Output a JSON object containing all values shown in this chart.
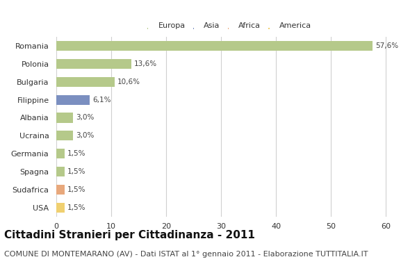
{
  "countries": [
    "Romania",
    "Polonia",
    "Bulgaria",
    "Filippine",
    "Albania",
    "Ucraina",
    "Germania",
    "Spagna",
    "Sudafrica",
    "USA"
  ],
  "values": [
    57.6,
    13.6,
    10.6,
    6.1,
    3.0,
    3.0,
    1.5,
    1.5,
    1.5,
    1.5
  ],
  "labels": [
    "57,6%",
    "13,6%",
    "10,6%",
    "6,1%",
    "3,0%",
    "3,0%",
    "1,5%",
    "1,5%",
    "1,5%",
    "1,5%"
  ],
  "bar_colors": [
    "#b5c98a",
    "#b5c98a",
    "#b5c98a",
    "#7b8fc0",
    "#b5c98a",
    "#b5c98a",
    "#b5c98a",
    "#b5c98a",
    "#e8a87c",
    "#f0d070"
  ],
  "legend_labels": [
    "Europa",
    "Asia",
    "Africa",
    "America"
  ],
  "legend_colors": [
    "#b5c98a",
    "#7b8fc0",
    "#e8a87c",
    "#f0d070"
  ],
  "title": "Cittadini Stranieri per Cittadinanza - 2011",
  "subtitle": "COMUNE DI MONTEMARANO (AV) - Dati ISTAT al 1° gennaio 2011 - Elaborazione TUTTITALIA.IT",
  "xlim": [
    0,
    63
  ],
  "xticks": [
    0,
    10,
    20,
    30,
    40,
    50,
    60
  ],
  "background_color": "#ffffff",
  "grid_color": "#d0d0d0",
  "title_fontsize": 11,
  "subtitle_fontsize": 8,
  "label_fontsize": 7.5,
  "tick_fontsize": 8,
  "bar_height": 0.55
}
